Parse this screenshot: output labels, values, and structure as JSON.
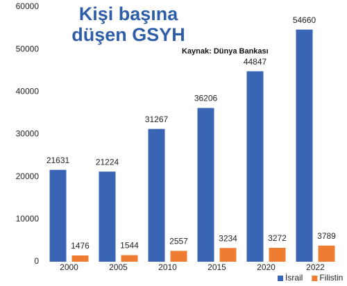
{
  "chart_data": {
    "type": "bar",
    "title": [
      "Kişi başına",
      "düşen GSYH"
    ],
    "annotation": "Kaynak: Dünya Bankası",
    "categories": [
      "2000",
      "2005",
      "2010",
      "2015",
      "2020",
      "2022"
    ],
    "series": [
      {
        "name": "İsrail",
        "color": "#3a64b4",
        "values": [
          21631,
          21224,
          31267,
          36206,
          44847,
          54660
        ]
      },
      {
        "name": "Filistin",
        "color": "#ee7d31",
        "values": [
          1476,
          1544,
          2557,
          3234,
          3272,
          3789
        ]
      }
    ],
    "ylim": [
      0,
      60000
    ],
    "yticks": [
      0,
      10000,
      20000,
      30000,
      40000,
      50000,
      60000
    ],
    "grid": false,
    "legend": "bottom-right"
  }
}
